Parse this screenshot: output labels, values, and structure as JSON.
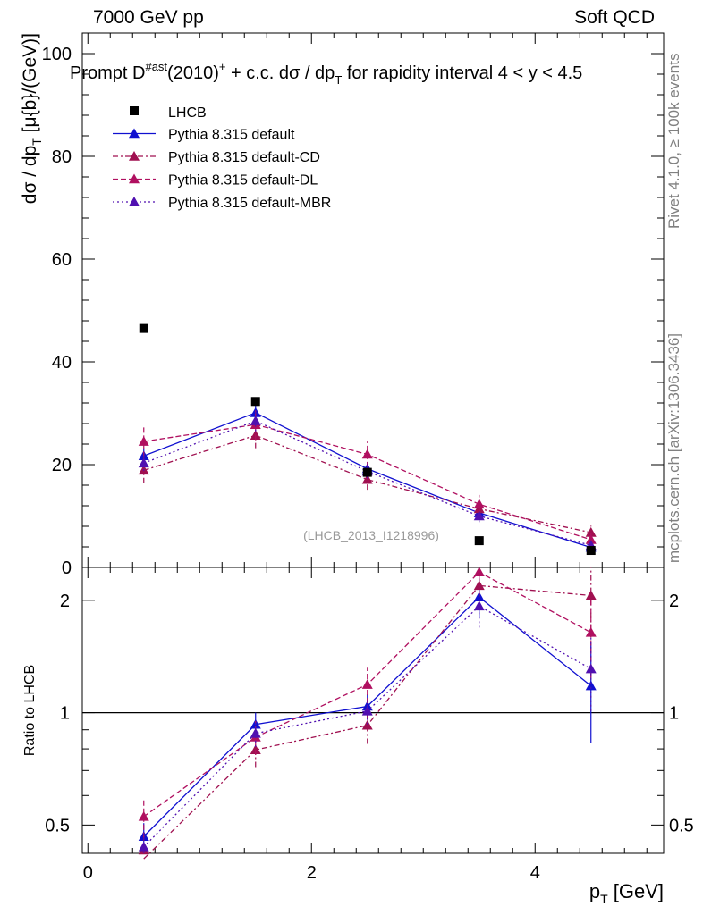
{
  "header": {
    "left": "7000 GeV pp",
    "right": "Soft QCD"
  },
  "side_labels": {
    "rivet": "Rivet 4.1.0, ≥ 100k events",
    "mcplots": "mcplots.cern.ch [arXiv:1306.3436]"
  },
  "chart_data": {
    "type": "scatter",
    "title_parts": {
      "pre": "Prompt D",
      "sup1": "#ast",
      "mid": "(2010)",
      "sup2": "+",
      "post": " + c.c.  dσ / dp",
      "sub": "T",
      "tail": " for rapidity interval 4 < y < 4.5"
    },
    "ylabel_parts": {
      "pre": "dσ / dp",
      "sub": "T",
      "post": " [μ{b}/(GeV)]"
    },
    "xlabel_parts": {
      "pre": "p",
      "sub": "T",
      "post": " [GeV]"
    },
    "ratio_ylabel": "Ratio to LHCB",
    "watermark": "(LHCB_2013_I1218996)",
    "xlim": [
      -0.05,
      5.15
    ],
    "ylim": [
      0,
      104
    ],
    "ratio_ylim": [
      0.42,
      2.45
    ],
    "x_ticks": [
      "0",
      "2",
      "4"
    ],
    "y_ticks": [
      "0",
      "20",
      "40",
      "60",
      "80",
      "100"
    ],
    "ratio_ticks": [
      "0.5",
      "1",
      "2"
    ],
    "data_series": {
      "name": "LHCB",
      "color": "#000000",
      "x": [
        0.5,
        1.5,
        2.5,
        3.5,
        4.5
      ],
      "y": [
        46.5,
        32.3,
        18.5,
        5.2,
        3.3
      ]
    },
    "series": [
      {
        "name": "Pythia 8.315 default",
        "color": "#1010d0",
        "dash": "",
        "x": [
          0.5,
          1.5,
          2.5,
          3.5,
          4.5
        ],
        "y": [
          21.7,
          30.1,
          19.2,
          10.6,
          3.9
        ],
        "err": [
          1.5,
          2.0,
          1.3,
          1.2,
          0.9
        ],
        "ratio": [
          0.466,
          0.93,
          1.04,
          2.04,
          1.18
        ],
        "ratio_err": [
          0.04,
          0.07,
          0.08,
          0.25,
          0.35
        ]
      },
      {
        "name": "Pythia 8.315 default-CD",
        "color": "#a01050",
        "dash": "6,3,2,3",
        "x": [
          0.5,
          1.5,
          2.5,
          3.5,
          4.5
        ],
        "y": [
          18.9,
          25.7,
          17.1,
          11.4,
          6.8
        ],
        "err": [
          2.5,
          2.5,
          2.0,
          1.8,
          1.3
        ],
        "ratio": [
          0.406,
          0.795,
          0.925,
          2.19,
          2.06
        ],
        "ratio_err": [
          0.055,
          0.08,
          0.1,
          0.3,
          0.4
        ]
      },
      {
        "name": "Pythia 8.315 default-DL",
        "color": "#b01060",
        "dash": "6,3",
        "x": [
          0.5,
          1.5,
          2.5,
          3.5,
          4.5
        ],
        "y": [
          24.5,
          27.8,
          22.0,
          12.3,
          5.4
        ],
        "err": [
          3.0,
          3.0,
          2.5,
          1.8,
          1.3
        ],
        "ratio": [
          0.527,
          0.86,
          1.19,
          2.38,
          1.64
        ],
        "ratio_err": [
          0.065,
          0.09,
          0.13,
          0.33,
          0.4
        ]
      },
      {
        "name": "Pythia 8.315 default-MBR",
        "color": "#5010b0",
        "dash": "2,3",
        "x": [
          0.5,
          1.5,
          2.5,
          3.5,
          4.5
        ],
        "y": [
          20.3,
          28.5,
          18.7,
          10.0,
          4.3
        ],
        "err": [
          1.5,
          2.0,
          1.4,
          1.2,
          0.9
        ],
        "ratio": [
          0.437,
          0.88,
          1.01,
          1.93,
          1.31
        ],
        "ratio_err": [
          0.04,
          0.07,
          0.08,
          0.24,
          0.3
        ]
      }
    ]
  }
}
